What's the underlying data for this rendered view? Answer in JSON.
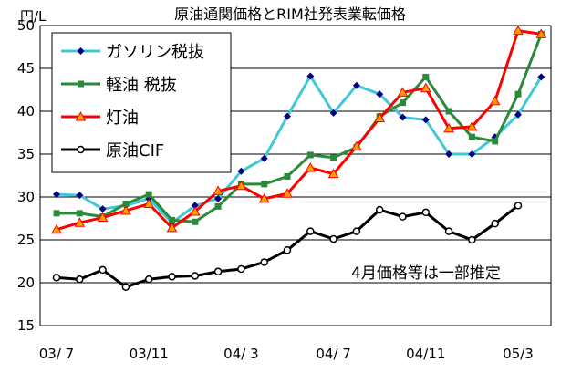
{
  "chart_data": {
    "type": "line",
    "title": "原油通関価格とRIM社発表業転価格",
    "ylabel": "円/L",
    "xlabel": "",
    "ylim": [
      15,
      50
    ],
    "yticks": [
      15,
      20,
      25,
      30,
      35,
      40,
      45,
      50
    ],
    "grid": "horizontal",
    "legend_position": "top-left",
    "annotation": "4月価格等は一部推定",
    "x": [
      "03/7",
      "03/8",
      "03/9",
      "03/10",
      "03/11",
      "03/12",
      "04/1",
      "04/2",
      "04/3",
      "04/4",
      "04/5",
      "04/6",
      "04/7",
      "04/8",
      "04/9",
      "04/10",
      "04/11",
      "04/12",
      "05/1",
      "05/2",
      "05/3",
      "05/4"
    ],
    "xtick_labels": [
      {
        "index": 0,
        "label": "03/ 7"
      },
      {
        "index": 4,
        "label": "03/11"
      },
      {
        "index": 8,
        "label": "04/ 3"
      },
      {
        "index": 12,
        "label": "04/ 7"
      },
      {
        "index": 16,
        "label": "04/11"
      },
      {
        "index": 20,
        "label": "05/3"
      }
    ],
    "series": [
      {
        "name": "ガソリン税抜",
        "color": "#40c8d8",
        "marker": "diamond",
        "marker_color": "#000080",
        "values": [
          30.3,
          30.2,
          28.6,
          29.0,
          29.8,
          27.0,
          29.0,
          29.8,
          33.0,
          34.5,
          39.4,
          44.1,
          39.8,
          43.0,
          42.0,
          39.3,
          39.0,
          35.0,
          35.0,
          37.0,
          39.6,
          44.0
        ]
      },
      {
        "name": "軽油  税抜",
        "color": "#2a8a3a",
        "marker": "square",
        "marker_color": "#2a8a3a",
        "values": [
          28.1,
          28.1,
          27.7,
          29.2,
          30.3,
          27.3,
          27.1,
          28.9,
          31.5,
          31.5,
          32.4,
          34.9,
          34.6,
          35.8,
          39.4,
          41.0,
          44.0,
          40.0,
          37.0,
          36.5,
          42.0,
          49.0
        ]
      },
      {
        "name": "灯油",
        "color": "#ff0000",
        "marker": "triangle",
        "marker_color": "#ffa000",
        "values": [
          26.2,
          27.0,
          27.6,
          28.4,
          29.2,
          26.4,
          28.3,
          30.7,
          31.3,
          29.8,
          30.4,
          33.4,
          32.7,
          35.9,
          39.2,
          42.2,
          42.7,
          38.0,
          38.2,
          41.2,
          49.4,
          49.0
        ]
      },
      {
        "name": "原油CIF",
        "color": "#000000",
        "marker": "circle-open",
        "marker_color": "#000000",
        "values": [
          20.6,
          20.4,
          21.5,
          19.5,
          20.4,
          20.7,
          20.8,
          21.3,
          21.6,
          22.4,
          23.8,
          26.0,
          25.1,
          26.0,
          28.5,
          27.7,
          28.2,
          26.0,
          25.0,
          26.9,
          29.0,
          null
        ]
      }
    ]
  }
}
